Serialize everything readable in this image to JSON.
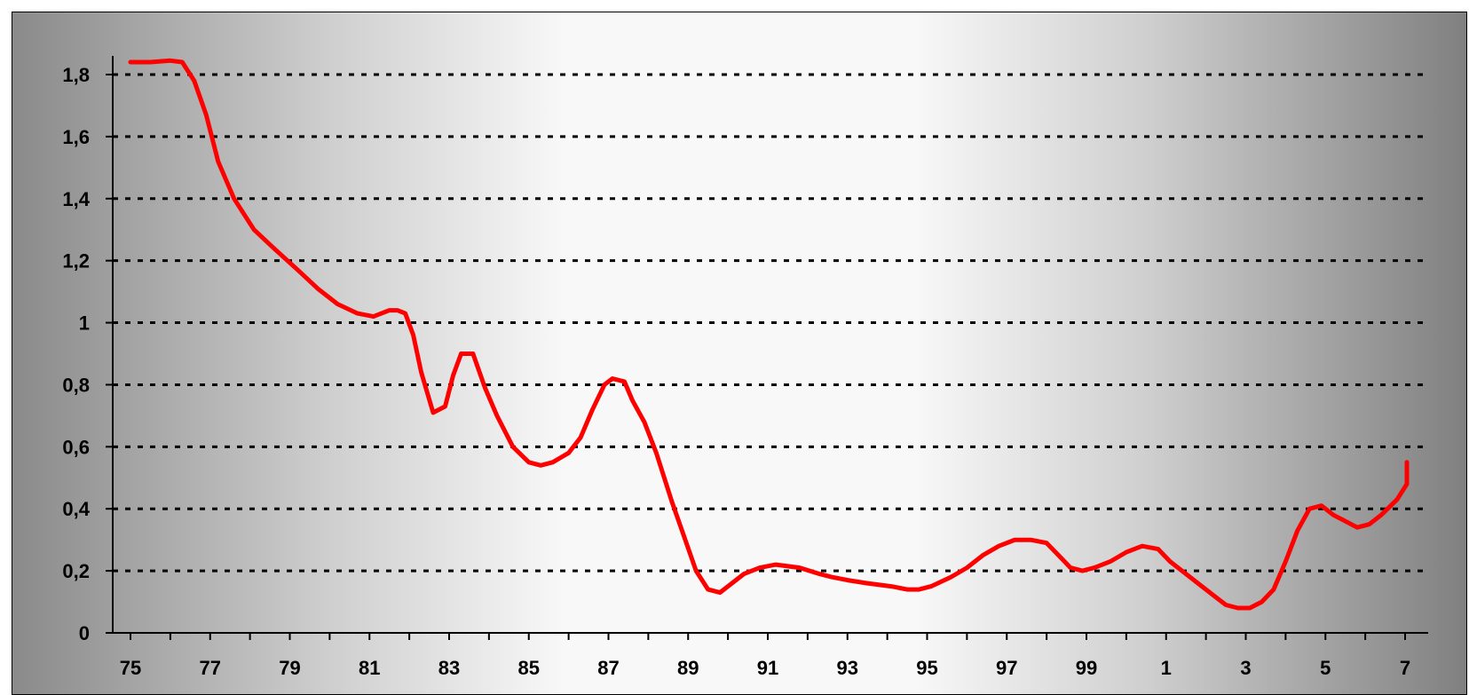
{
  "chart_data": {
    "type": "line",
    "title": "",
    "xlabel": "",
    "ylabel": "",
    "x_tick_labels": [
      "75",
      "77",
      "79",
      "81",
      "83",
      "85",
      "87",
      "89",
      "91",
      "93",
      "95",
      "97",
      "99",
      "1",
      "3",
      "5",
      "7"
    ],
    "y_tick_labels": [
      "0",
      "0,2",
      "0,4",
      "0,6",
      "0,8",
      "1",
      "1,2",
      "1,4",
      "1,6",
      "1,8"
    ],
    "y_ticks": [
      0,
      0.2,
      0.4,
      0.6,
      0.8,
      1,
      1.2,
      1.4,
      1.6,
      1.8
    ],
    "xlim": [
      1975,
      2008
    ],
    "ylim": [
      0,
      1.8
    ],
    "grid": true,
    "colors": {
      "line": "#ff0000",
      "grid": "#000000"
    },
    "series": [
      {
        "x": [
          1975,
          1975.5,
          1976,
          1976.3,
          1976.6,
          1976.9,
          1977.2,
          1977.6,
          1978.1,
          1978.6,
          1979.2,
          1979.7,
          1980.2,
          1980.7,
          1981.1,
          1981.3,
          1981.5,
          1981.7,
          1981.9,
          1982.1,
          1982.3,
          1982.6,
          1982.9,
          1983.1,
          1983.3,
          1983.6,
          1983.9,
          1984.2,
          1984.6,
          1985,
          1985.3,
          1985.6,
          1986,
          1986.3,
          1986.6,
          1986.9,
          1987.1,
          1987.4,
          1987.6,
          1987.9,
          1988.2,
          1988.6,
          1988.9,
          1989.2,
          1989.5,
          1989.8,
          1990,
          1990.4,
          1990.8,
          1991.2,
          1991.8,
          1992.3,
          1992.6,
          1993,
          1993.5,
          1994.1,
          1994.5,
          1994.8,
          1995.1,
          1995.6,
          1996,
          1996.4,
          1996.8,
          1997.2,
          1997.6,
          1998,
          1998.3,
          1998.6,
          1998.9,
          1999.2,
          1999.6,
          2000,
          2000.4,
          2000.8,
          2001.1,
          2001.4,
          2001.8,
          2002.2,
          2002.5,
          2002.8,
          2003.1,
          2003.4,
          2003.7,
          2004,
          2004.3,
          2004.6,
          2004.9,
          2005.2,
          2005.5,
          2005.8,
          2006.1,
          2006.4,
          2006.8,
          2007.2,
          2007.6,
          2008
        ],
        "y": [
          1.84,
          1.84,
          1.845,
          1.84,
          1.78,
          1.67,
          1.52,
          1.4,
          1.3,
          1.24,
          1.17,
          1.11,
          1.06,
          1.03,
          1.02,
          1.03,
          1.04,
          1.04,
          1.03,
          0.96,
          0.84,
          0.71,
          0.73,
          0.83,
          0.9,
          0.9,
          0.79,
          0.7,
          0.6,
          0.55,
          0.54,
          0.55,
          0.58,
          0.63,
          0.72,
          0.8,
          0.82,
          0.81,
          0.75,
          0.68,
          0.58,
          0.42,
          0.31,
          0.2,
          0.14,
          0.13,
          0.15,
          0.19,
          0.21,
          0.22,
          0.21,
          0.19,
          0.18,
          0.17,
          0.16,
          0.15,
          0.14,
          0.14,
          0.15,
          0.18,
          0.21,
          0.25,
          0.28,
          0.3,
          0.3,
          0.29,
          0.25,
          0.21,
          0.2,
          0.21,
          0.23,
          0.26,
          0.28,
          0.27,
          0.23,
          0.2,
          0.16,
          0.12,
          0.09,
          0.08,
          0.08,
          0.1,
          0.14,
          0.23,
          0.33,
          0.4,
          0.41,
          0.38,
          0.36,
          0.34,
          0.35,
          0.38,
          0.43,
          0.48,
          0.52,
          0.55
        ]
      }
    ]
  }
}
